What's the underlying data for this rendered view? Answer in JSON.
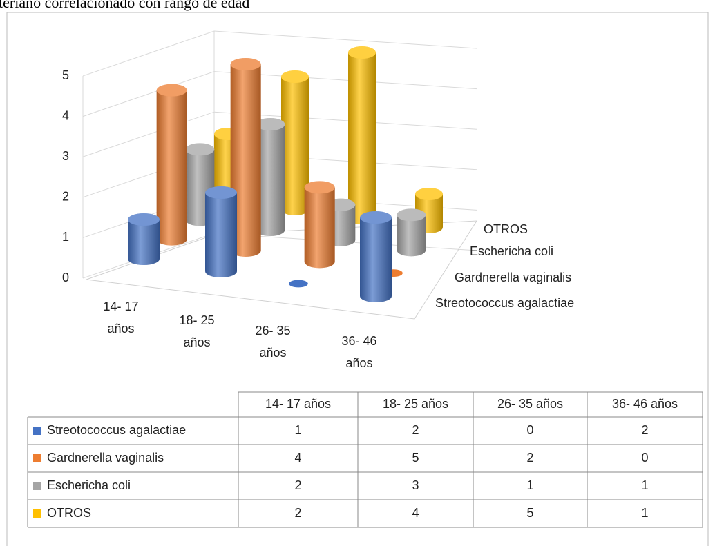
{
  "chart_data": {
    "type": "bar3d",
    "title": "teriano correlacionado con rango de edad",
    "categories": [
      "14- 17 años",
      "18- 25 años",
      "26- 35 años",
      "36- 46 años"
    ],
    "series": [
      {
        "name": "Streotococcus agalactiae",
        "color": "#4472c4",
        "values": [
          1,
          2,
          0,
          2
        ]
      },
      {
        "name": "Gardnerella vaginalis",
        "color": "#ed7d31",
        "values": [
          4,
          5,
          2,
          0
        ]
      },
      {
        "name": "Eschericha coli",
        "color": "#a5a5a5",
        "values": [
          2,
          3,
          1,
          1
        ]
      },
      {
        "name": "OTROS",
        "color": "#ffc000",
        "values": [
          2,
          4,
          5,
          1
        ]
      }
    ],
    "ylim": [
      0,
      5
    ],
    "yticks": [
      0,
      1,
      2,
      3,
      4,
      5
    ],
    "grid": true,
    "data_table": true
  }
}
